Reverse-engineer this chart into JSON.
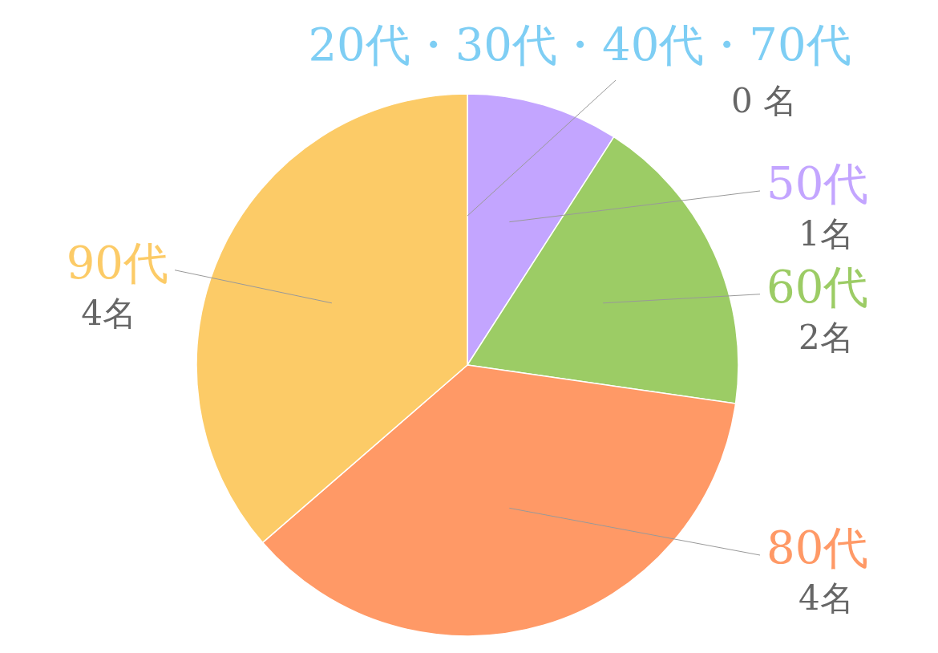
{
  "chart_data": {
    "type": "pie",
    "categories": [
      "20代・30代・40代・70代",
      "50代",
      "60代",
      "80代",
      "90代"
    ],
    "values": [
      0,
      1,
      2,
      4,
      4
    ],
    "colors": [
      "#7ecef4",
      "#c3a5ff",
      "#9ccc65",
      "#ff9966",
      "#fccb67"
    ],
    "value_labels": [
      "0 名",
      "1名",
      "2名",
      "4名",
      "4名"
    ]
  }
}
